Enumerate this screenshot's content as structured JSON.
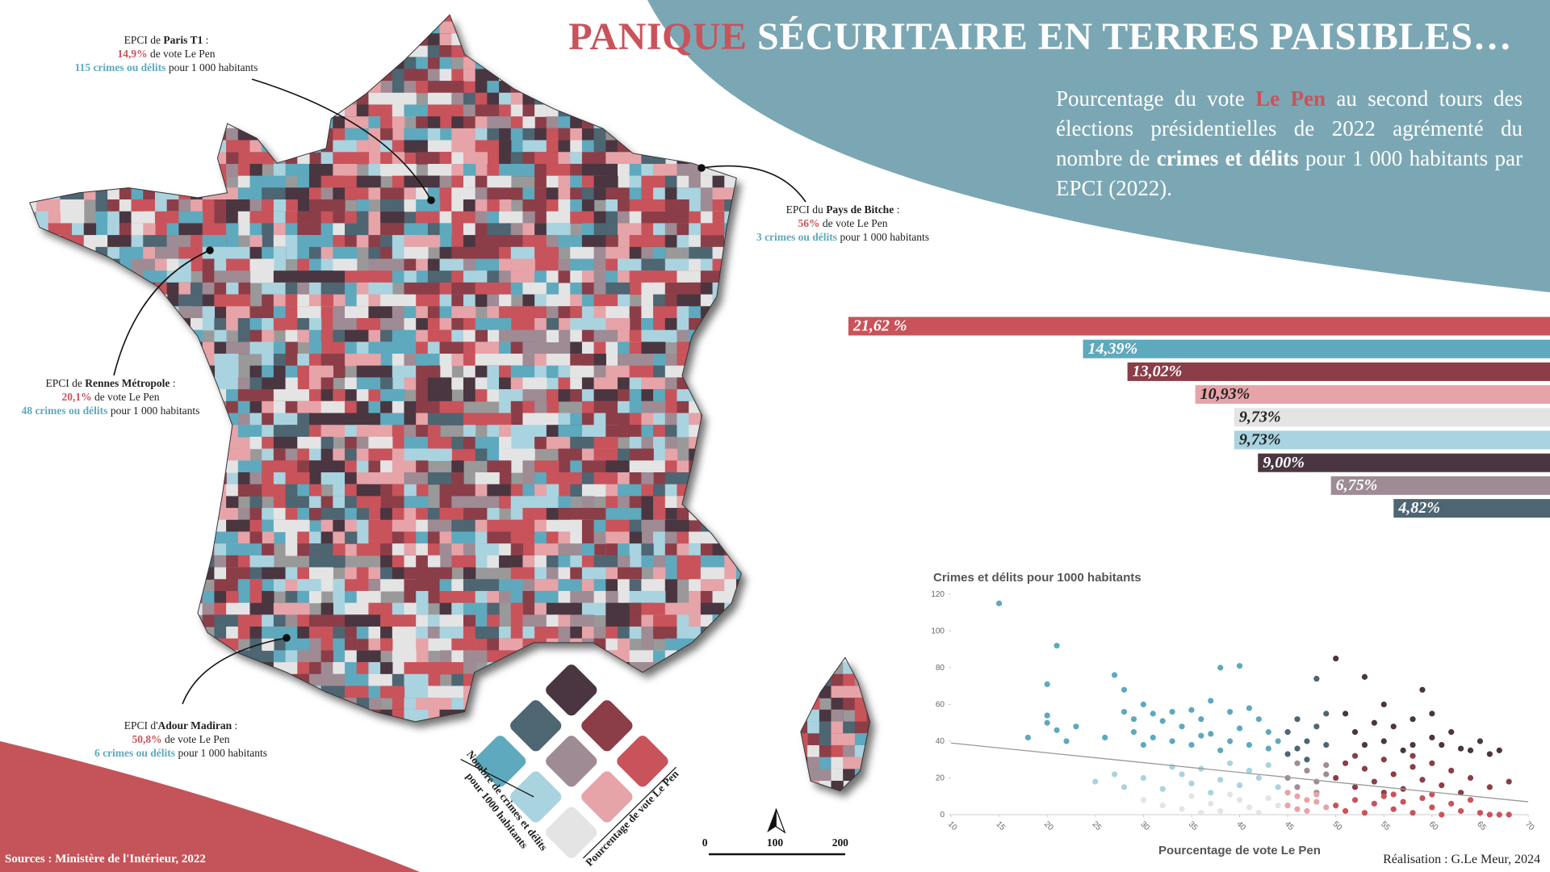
{
  "title": {
    "part1": "PANIQUE",
    "part2": " SÉCURITAIRE EN TERRES PAISIBLES…"
  },
  "subtitle": [
    "Pourcentage du vote ",
    "Le Pen",
    " au second tours des élections présidentielles de 2022 agrémenté du nombre de ",
    "crimes et délits",
    " pour 1 000 habitants par EPCI (2022)."
  ],
  "callouts": [
    {
      "prefix": "EPCI de ",
      "name": "Paris T1",
      "suffix": " :",
      "vote": "14,9%",
      "vote_text": " de vote Le Pen",
      "crimes": "115 crimes ou délits",
      "crimes_text": " pour 1 000 habitants"
    },
    {
      "prefix": "EPCI du ",
      "name": "Pays de Bitche",
      "suffix": " :",
      "vote": "56%",
      "vote_text": " de vote Le Pen",
      "crimes": "3 crimes ou délits",
      "crimes_text": " pour 1 000 habitants"
    },
    {
      "prefix": "EPCI de ",
      "name": "Rennes Métropole",
      "suffix": " :",
      "vote": "20,1%",
      "vote_text": " de vote Le Pen",
      "crimes": "48 crimes ou délits",
      "crimes_text": " pour 1 000 habitants"
    },
    {
      "prefix": "EPCI d'",
      "name": "Adour Madiran",
      "suffix": " :",
      "vote": "50,8%",
      "vote_text": " de vote Le Pen",
      "crimes": "6 crimes ou délits",
      "crimes_text": " pour 1 000 habitants"
    }
  ],
  "legend": {
    "crime_label": [
      "Nombre de crimes et délits",
      "pour 1000 habitants"
    ],
    "vote_label": "Pourcentage de vote Le Pen",
    "colors": [
      [
        "#e4e4e4",
        "#e6a3a8",
        "#c9535b"
      ],
      [
        "#a9d3df",
        "#9e8b94",
        "#8b3e48"
      ],
      [
        "#5ea9bd",
        "#4e6572",
        "#4a3640"
      ]
    ]
  },
  "scale_bar": {
    "ticks": [
      0,
      100,
      200
    ]
  },
  "sources": "Sources : Ministère de l'Intérieur, 2022",
  "credit": "Réalisation : G.Le Meur, 2024",
  "chart_data": [
    {
      "type": "bar",
      "orientation": "horizontal",
      "categories": [
        null,
        null,
        null,
        null,
        null,
        null,
        null,
        null,
        null
      ],
      "values": [
        21.62,
        14.39,
        13.02,
        10.93,
        9.73,
        9.73,
        9.0,
        6.75,
        4.82
      ],
      "value_labels": [
        "21,62 %",
        "14,39%",
        "13,02%",
        "10,93%",
        "9,73%",
        "9,73%",
        "9,00%",
        "6,75%",
        "4,82%"
      ],
      "colors": [
        "#c9535b",
        "#5ea9bd",
        "#8b3e48",
        "#e6a3a8",
        "#e4e4e4",
        "#a9d3df",
        "#4a3640",
        "#9e8b94",
        "#4e6572"
      ]
    },
    {
      "type": "scatter",
      "title": "Crimes et délits pour 1000 habitants",
      "x_label": "Pourcentage de vote Le Pen",
      "xlim": [
        10,
        70
      ],
      "ylim": [
        0,
        120
      ],
      "xticks": [
        10,
        15,
        20,
        25,
        30,
        35,
        40,
        45,
        50,
        55,
        60,
        65,
        70
      ],
      "yticks": [
        0,
        20,
        40,
        60,
        80,
        100,
        120
      ],
      "trendline": {
        "x": [
          10,
          70
        ],
        "values": [
          39,
          7
        ],
        "color": "#999999"
      },
      "series": [
        {
          "color": "#5ea9bd",
          "x": [
            15,
            21,
            20,
            20,
            20,
            18,
            21,
            23,
            22,
            27,
            28,
            28,
            29,
            30,
            31,
            32,
            33,
            34,
            35,
            36,
            37,
            38,
            39,
            40,
            40,
            41,
            42,
            43,
            26,
            29,
            31,
            33,
            35,
            37,
            39,
            41,
            43,
            44,
            36,
            38,
            30
          ],
          "values": [
            115,
            92,
            71,
            54,
            50,
            42,
            46,
            48,
            40,
            76,
            68,
            56,
            52,
            60,
            55,
            51,
            56,
            48,
            57,
            52,
            62,
            80,
            56,
            47,
            81,
            58,
            52,
            45,
            42,
            45,
            42,
            40,
            38,
            44,
            40,
            38,
            36,
            40,
            43,
            35,
            38
          ]
        },
        {
          "color": "#a9d3df",
          "x": [
            25,
            28,
            30,
            32,
            34,
            35,
            36,
            38,
            40,
            41,
            42,
            44,
            33,
            39,
            43,
            27,
            37
          ],
          "values": [
            18,
            15,
            20,
            14,
            22,
            17,
            25,
            19,
            16,
            24,
            20,
            15,
            26,
            28,
            27,
            22,
            12
          ]
        },
        {
          "color": "#e4e4e4",
          "x": [
            30,
            32,
            34,
            35,
            37,
            38,
            40,
            41,
            42,
            43,
            44,
            36,
            39
          ],
          "values": [
            8,
            5,
            3,
            10,
            6,
            2,
            8,
            4,
            1,
            9,
            5,
            1,
            11
          ]
        },
        {
          "color": "#4e6572",
          "x": [
            45,
            46,
            47,
            48,
            49,
            46,
            48,
            47,
            49,
            45
          ],
          "values": [
            45,
            52,
            40,
            48,
            38,
            36,
            74,
            30,
            55,
            33
          ]
        },
        {
          "color": "#9e8b94",
          "x": [
            45,
            46,
            47,
            48,
            49,
            46,
            48,
            49
          ],
          "values": [
            20,
            15,
            24,
            18,
            27,
            28,
            12,
            22
          ]
        },
        {
          "color": "#e6a3a8",
          "x": [
            45,
            46,
            47,
            48,
            49,
            46,
            48,
            47,
            45
          ],
          "values": [
            5,
            10,
            2,
            7,
            4,
            3,
            11,
            8,
            12
          ]
        },
        {
          "color": "#4a3640",
          "x": [
            50,
            53,
            59,
            51,
            52,
            54,
            55,
            56,
            57,
            58,
            60,
            61,
            62,
            63,
            65,
            67,
            53,
            55,
            58,
            60,
            64,
            66
          ],
          "values": [
            85,
            75,
            68,
            55,
            45,
            50,
            40,
            48,
            35,
            52,
            42,
            38,
            45,
            36,
            40,
            35,
            38,
            60,
            38,
            55,
            35,
            33
          ]
        },
        {
          "color": "#8b3e48",
          "x": [
            50,
            51,
            52,
            53,
            54,
            55,
            56,
            57,
            58,
            59,
            60,
            61,
            62,
            63,
            64,
            66,
            68,
            52,
            55,
            58
          ],
          "values": [
            20,
            28,
            15,
            25,
            18,
            30,
            22,
            14,
            26,
            19,
            28,
            16,
            24,
            12,
            20,
            15,
            18,
            32,
            12,
            32
          ]
        },
        {
          "color": "#c9535b",
          "x": [
            50,
            51,
            52,
            53,
            54,
            55,
            56,
            57,
            58,
            59,
            60,
            61,
            62,
            63,
            64,
            65,
            66,
            67,
            68,
            56,
            60
          ],
          "values": [
            5,
            2,
            8,
            1,
            6,
            10,
            3,
            7,
            1,
            9,
            4,
            0,
            6,
            2,
            8,
            1,
            0,
            0,
            0,
            11,
            11
          ]
        }
      ]
    }
  ]
}
